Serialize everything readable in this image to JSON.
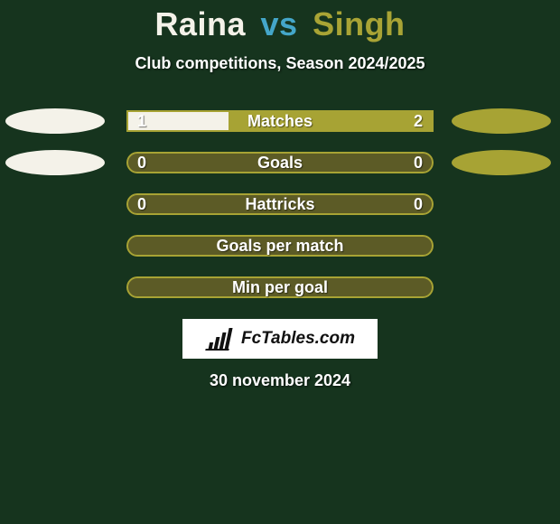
{
  "background_color": "#16341e",
  "title": {
    "player1": "Raina",
    "vs": "vs",
    "player2": "Singh",
    "player1_color": "#f4f2e9",
    "vs_color": "#44a6c9",
    "player2_color": "#a9a435",
    "fontsize": 36
  },
  "subtitle": {
    "text": "Club competitions, Season 2024/2025",
    "color": "#ffffff",
    "fontsize": 18
  },
  "bar": {
    "track_width": 340,
    "track_height": 24,
    "track_bg": "#5c5b26",
    "border_color": "#a7a334",
    "border_width": 2,
    "left_fill_color": "#f4f2e9",
    "right_fill_color": "#a7a334",
    "label_color": "#ffffff",
    "value_color": "#ffffff"
  },
  "rows": [
    {
      "label": "Matches",
      "left_value": "1",
      "right_value": "2",
      "left_num": 1,
      "right_num": 2,
      "rounded": false,
      "show_fill": true,
      "left_oval": true,
      "right_oval": true
    },
    {
      "label": "Goals",
      "left_value": "0",
      "right_value": "0",
      "left_num": 0,
      "right_num": 0,
      "rounded": true,
      "show_fill": true,
      "left_oval": true,
      "right_oval": true
    },
    {
      "label": "Hattricks",
      "left_value": "0",
      "right_value": "0",
      "left_num": 0,
      "right_num": 0,
      "rounded": true,
      "show_fill": true,
      "left_oval": false,
      "right_oval": false
    },
    {
      "label": "Goals per match",
      "left_value": "",
      "right_value": "",
      "left_num": 0,
      "right_num": 0,
      "rounded": true,
      "show_fill": false,
      "left_oval": false,
      "right_oval": false
    },
    {
      "label": "Min per goal",
      "left_value": "",
      "right_value": "",
      "left_num": 0,
      "right_num": 0,
      "rounded": true,
      "show_fill": false,
      "left_oval": false,
      "right_oval": false
    }
  ],
  "side_ovals": {
    "left_color": "#f4f2e9",
    "right_color": "#a7a334",
    "width": 110,
    "height": 28
  },
  "logo": {
    "bg": "#ffffff",
    "text": "FcTables.com",
    "text_color": "#111111",
    "icon_color": "#111111"
  },
  "date": {
    "text": "30 november 2024",
    "color": "#ffffff"
  }
}
